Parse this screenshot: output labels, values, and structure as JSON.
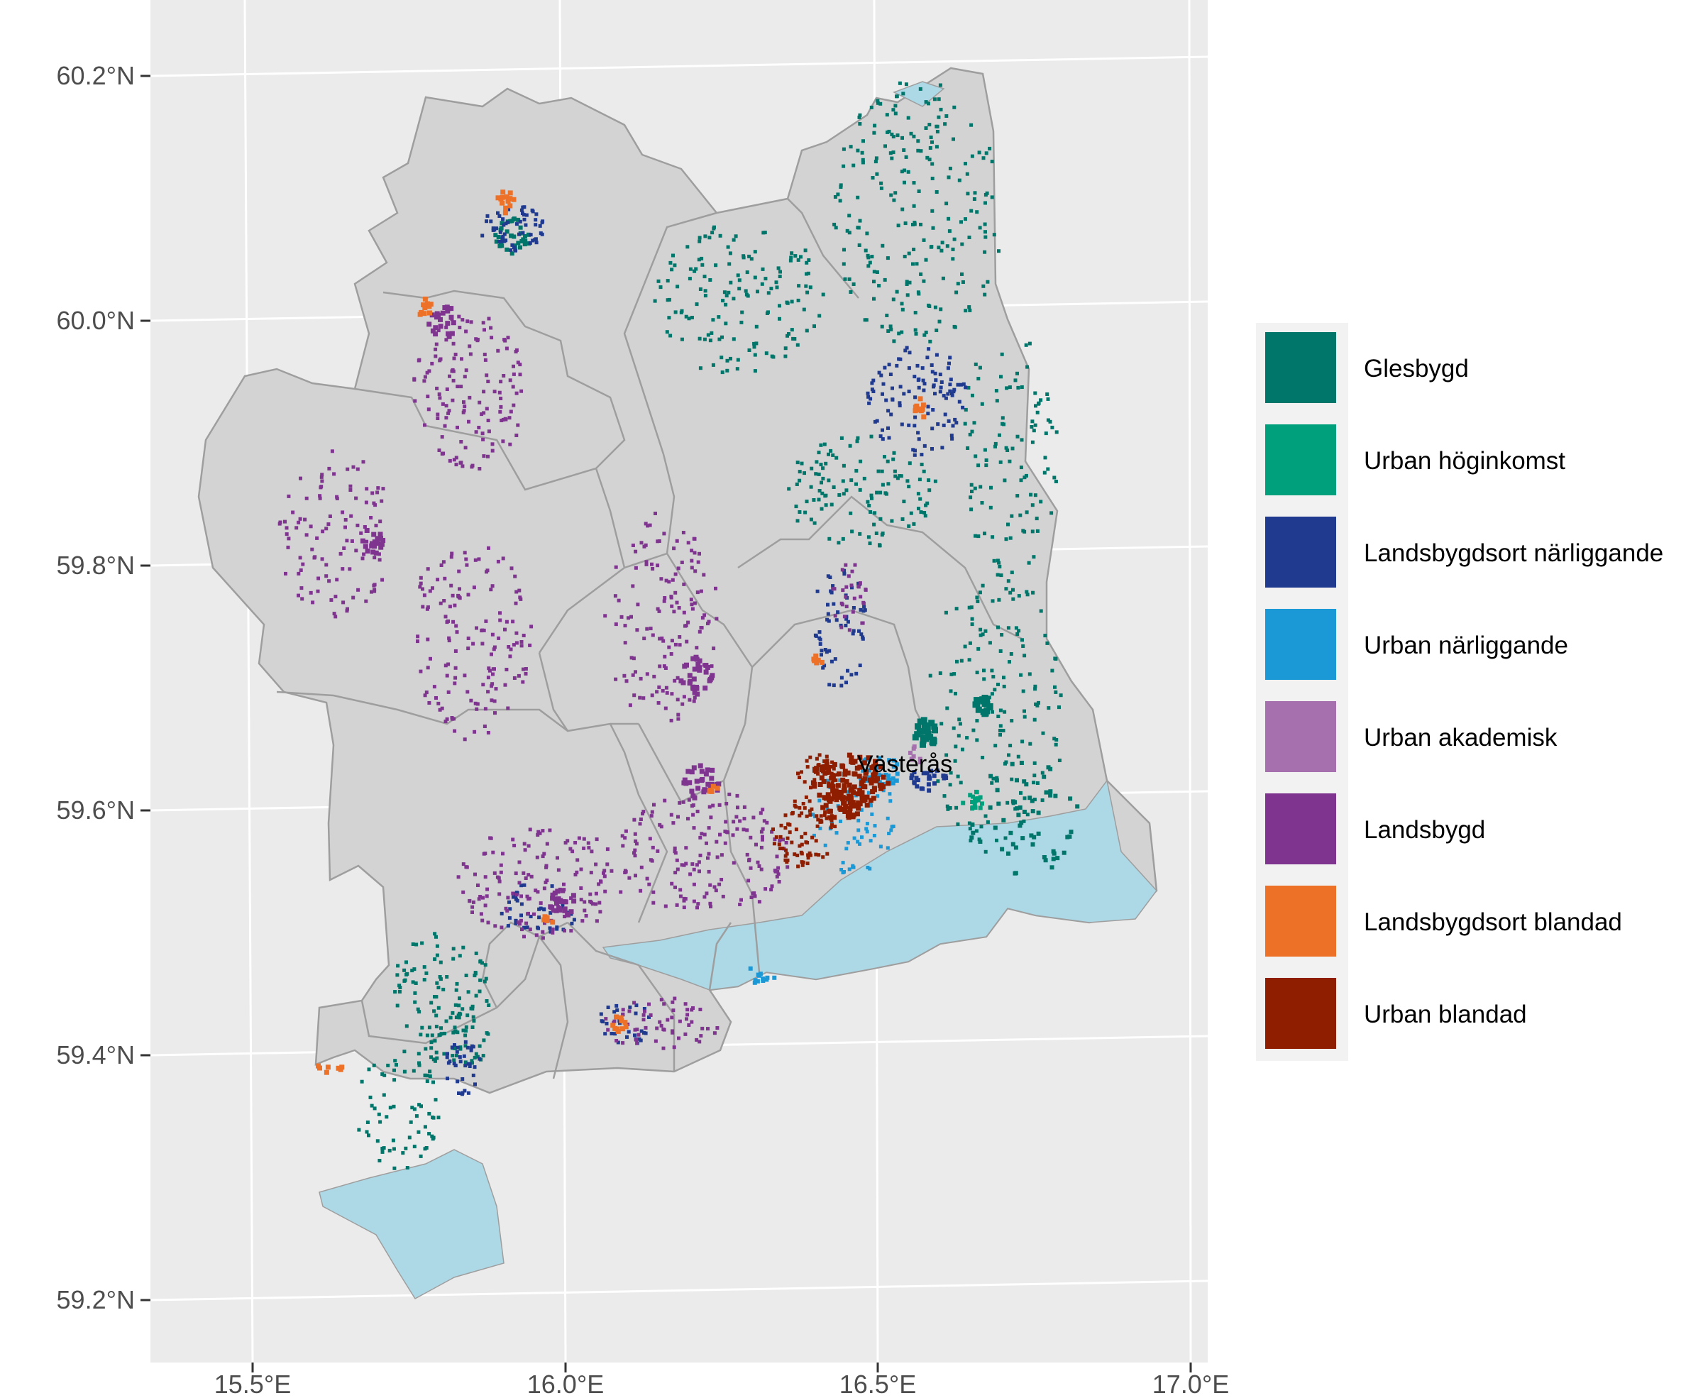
{
  "map": {
    "place_label": "Västerås",
    "x_ticks": [
      "15.5°E",
      "16.0°E",
      "16.5°E",
      "17.0°E"
    ],
    "y_ticks": [
      "60.2°N",
      "60.0°N",
      "59.8°N",
      "59.6°N",
      "59.4°N",
      "59.2°N"
    ],
    "colors": {
      "panel": "#ebebeb",
      "grid": "#ffffff",
      "land": "#d3d3d3",
      "water": "#add8e6",
      "border": "#9e9e9e"
    }
  },
  "legend": {
    "items": [
      {
        "label": "Glesbygd",
        "color": "#00756a"
      },
      {
        "label": "Urban höginkomst",
        "color": "#00a07c"
      },
      {
        "label": "Landsbygdsort närliggande",
        "color": "#1f3a8f"
      },
      {
        "label": "Urban närliggande",
        "color": "#1b98d6"
      },
      {
        "label": "Urban akademisk",
        "color": "#a66fae"
      },
      {
        "label": "Landsbygd",
        "color": "#7f358f"
      },
      {
        "label": "Landsbygdsort blandad",
        "color": "#ee7128"
      },
      {
        "label": "Urban blandad",
        "color": "#8f1e00"
      }
    ]
  }
}
